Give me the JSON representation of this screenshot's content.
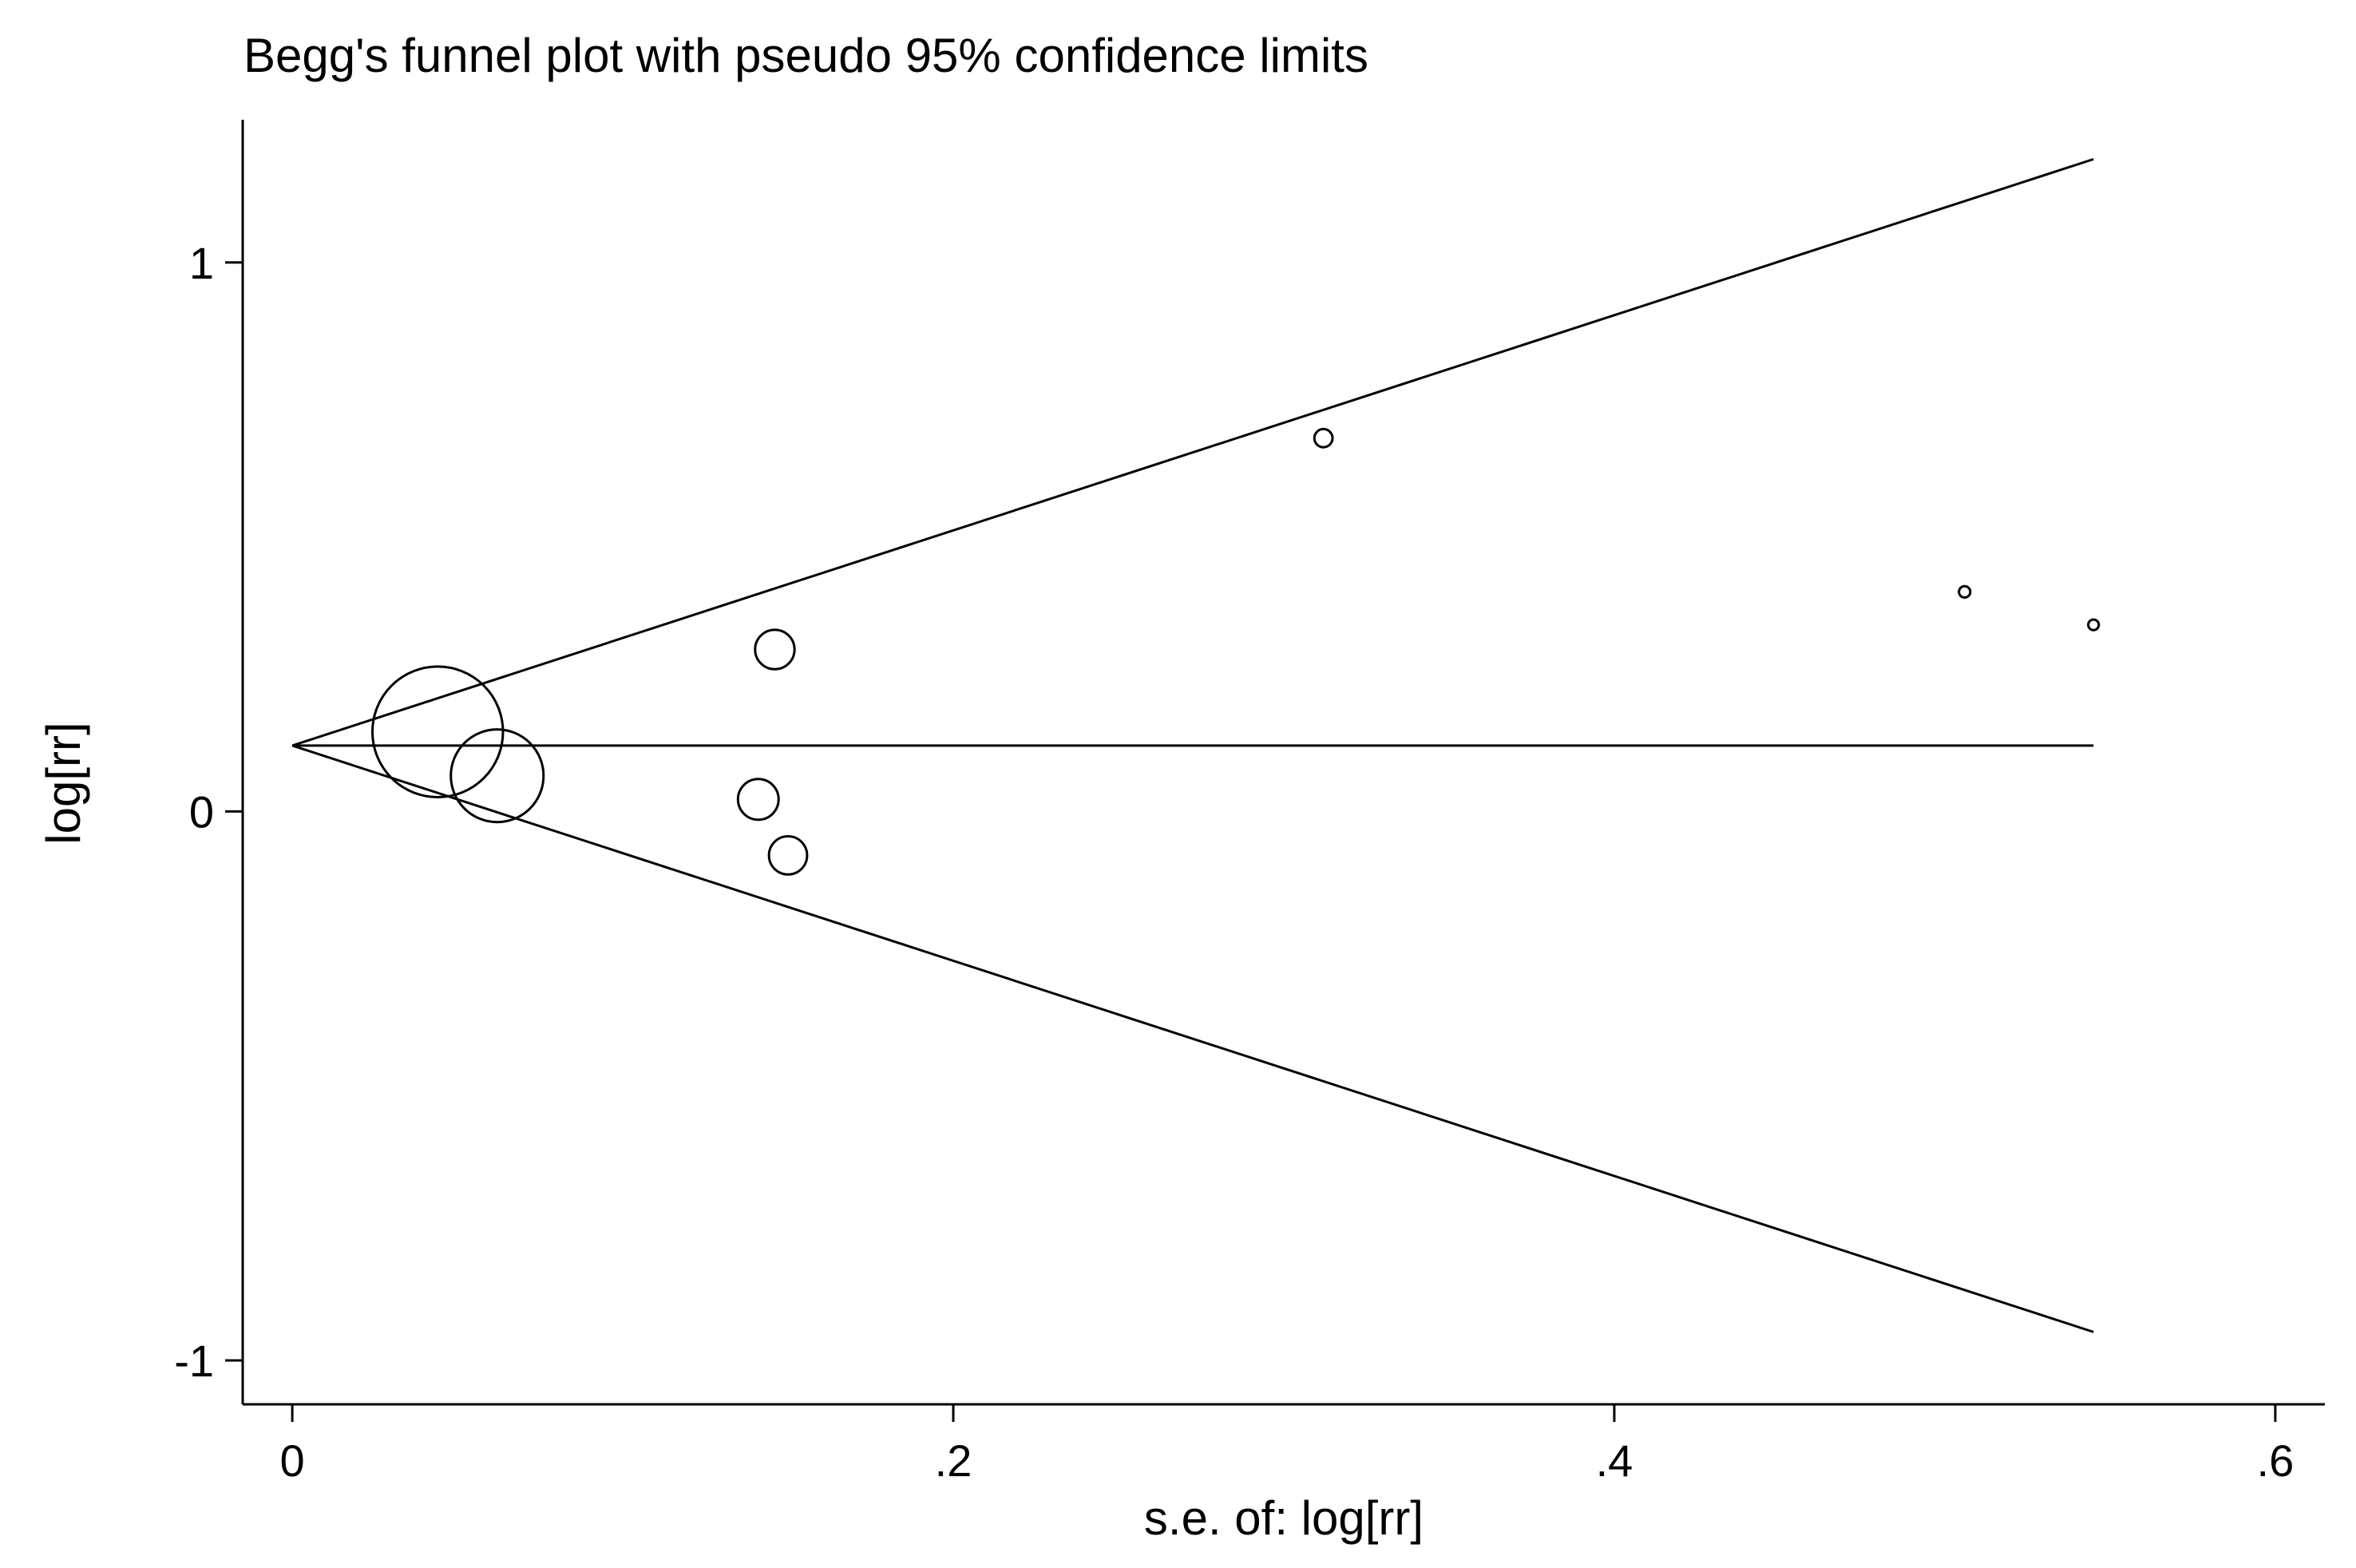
{
  "chart_data": {
    "type": "scatter",
    "title": "Begg's funnel plot with pseudo 95% confidence limits",
    "xlabel": "s.e. of: log[rr]",
    "ylabel": "log[rr]",
    "xlim": [
      -0.015,
      0.615
    ],
    "ylim": [
      -1.08,
      1.26
    ],
    "x_ticks": [
      0,
      0.2,
      0.4,
      0.6
    ],
    "x_tick_labels": [
      "0",
      ".2",
      ".4",
      ".6"
    ],
    "y_ticks": [
      -1,
      0,
      1
    ],
    "y_tick_labels": [
      "-1",
      "0",
      "1"
    ],
    "grid": false,
    "pooled_estimate": 0.12,
    "funnel_max_se": 0.545,
    "points": [
      {
        "se": 0.044,
        "log_rr": 0.145,
        "weight": 516
      },
      {
        "se": 0.062,
        "log_rr": 0.065,
        "weight": 260
      },
      {
        "se": 0.141,
        "log_rr": 0.022,
        "weight": 50
      },
      {
        "se": 0.146,
        "log_rr": 0.295,
        "weight": 47
      },
      {
        "se": 0.15,
        "log_rr": -0.08,
        "weight": 44
      },
      {
        "se": 0.312,
        "log_rr": 0.68,
        "weight": 10
      },
      {
        "se": 0.506,
        "log_rr": 0.4,
        "weight": 3.9
      },
      {
        "se": 0.545,
        "log_rr": 0.34,
        "weight": 3.4
      }
    ],
    "marker": "hollow circle, area proportional to weight",
    "line_color": "#000000"
  }
}
